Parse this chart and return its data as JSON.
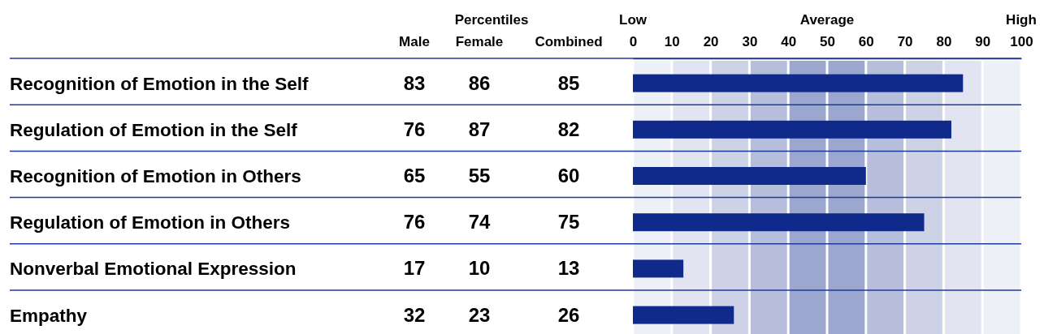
{
  "chart_data": [
    {
      "type": "other",
      "annotations": [
        "Percentiles"
      ],
      "data_labels": true,
      "categories": [
        "Recognition of Emotion in the Self",
        "Regulation of Emotion in the Self",
        "Recognition of Emotion in Others",
        "Regulation of Emotion in Others",
        "Nonverbal Emotional Expression",
        "Empathy"
      ],
      "series": [
        {
          "name": "Male",
          "values": [
            83,
            76,
            65,
            76,
            17,
            32
          ]
        },
        {
          "name": "Female",
          "values": [
            86,
            87,
            55,
            74,
            10,
            23
          ]
        },
        {
          "name": "Combined",
          "values": [
            85,
            82,
            60,
            75,
            13,
            26
          ]
        }
      ]
    },
    {
      "type": "bar",
      "orientation": "horizontal",
      "categories": [
        null,
        null,
        null,
        null,
        null,
        null
      ],
      "series": [
        {
          "color": "#0f2a8a",
          "values": [
            85,
            82,
            60,
            75,
            13,
            26
          ]
        }
      ],
      "annotations": [
        "Low",
        "Average",
        "High"
      ],
      "xlim": [
        0,
        100
      ],
      "xticks": [
        0,
        10,
        20,
        30,
        40,
        50,
        60,
        70,
        80,
        90,
        100
      ],
      "bands": [
        {
          "axis": "x",
          "from": 0,
          "to": 10,
          "color": "#eef0f7"
        },
        {
          "axis": "x",
          "from": 10,
          "to": 20,
          "color": "#e2e5f1"
        },
        {
          "axis": "x",
          "from": 20,
          "to": 30,
          "color": "#cdd2e7"
        },
        {
          "axis": "x",
          "from": 30,
          "to": 40,
          "color": "#b6bedc"
        },
        {
          "axis": "x",
          "from": 40,
          "to": 50,
          "color": "#9ca7cf"
        },
        {
          "axis": "x",
          "from": 50,
          "to": 60,
          "color": "#9ca7cf"
        },
        {
          "axis": "x",
          "from": 60,
          "to": 70,
          "color": "#b6bedc"
        },
        {
          "axis": "x",
          "from": 70,
          "to": 80,
          "color": "#cdd2e7"
        },
        {
          "axis": "x",
          "from": 80,
          "to": 90,
          "color": "#e2e5f1"
        },
        {
          "axis": "x",
          "from": 90,
          "to": 100,
          "color": "#eef0f7"
        }
      ]
    }
  ]
}
